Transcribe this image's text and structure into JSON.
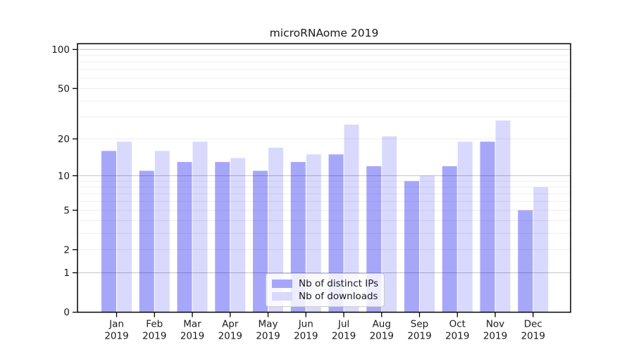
{
  "title": "microRNAome 2019",
  "chart_data": {
    "type": "bar",
    "title": "microRNAome 2019",
    "categories": [
      {
        "month": "Jan",
        "year": "2019"
      },
      {
        "month": "Feb",
        "year": "2019"
      },
      {
        "month": "Mar",
        "year": "2019"
      },
      {
        "month": "Apr",
        "year": "2019"
      },
      {
        "month": "May",
        "year": "2019"
      },
      {
        "month": "Jun",
        "year": "2019"
      },
      {
        "month": "Jul",
        "year": "2019"
      },
      {
        "month": "Aug",
        "year": "2019"
      },
      {
        "month": "Sep",
        "year": "2019"
      },
      {
        "month": "Oct",
        "year": "2019"
      },
      {
        "month": "Nov",
        "year": "2019"
      },
      {
        "month": "Dec",
        "year": "2019"
      }
    ],
    "series": [
      {
        "name": "Nb of distinct IPs",
        "color": "#0a0af0",
        "opacity": 0.36,
        "solid_hex": "#a7a7f9",
        "values": [
          16,
          11,
          13,
          13,
          11,
          13,
          15,
          12,
          9,
          12,
          19,
          5
        ]
      },
      {
        "name": "Nb of downloads",
        "color": "#0a0af0",
        "opacity": 0.155,
        "solid_hex": "#d9d9fb",
        "values": [
          19,
          16,
          19,
          14,
          17,
          15,
          26,
          21,
          10,
          19,
          28,
          8
        ]
      }
    ],
    "yscale": "log1p",
    "ylim": [
      0,
      111
    ],
    "yticks": [
      100,
      50,
      20,
      10,
      5,
      2,
      1,
      0
    ],
    "grid": {
      "major": [
        1,
        10,
        100
      ],
      "minor": [
        2,
        3,
        4,
        5,
        6,
        7,
        8,
        9,
        20,
        30,
        40,
        50,
        60,
        70,
        80,
        90
      ],
      "major_color": "#c2c2c2",
      "minor_color": "#ededed"
    },
    "legend_position": "lower center",
    "axis_color": "#000000",
    "text_color": "#1a1a1a",
    "background": "#ffffff"
  }
}
